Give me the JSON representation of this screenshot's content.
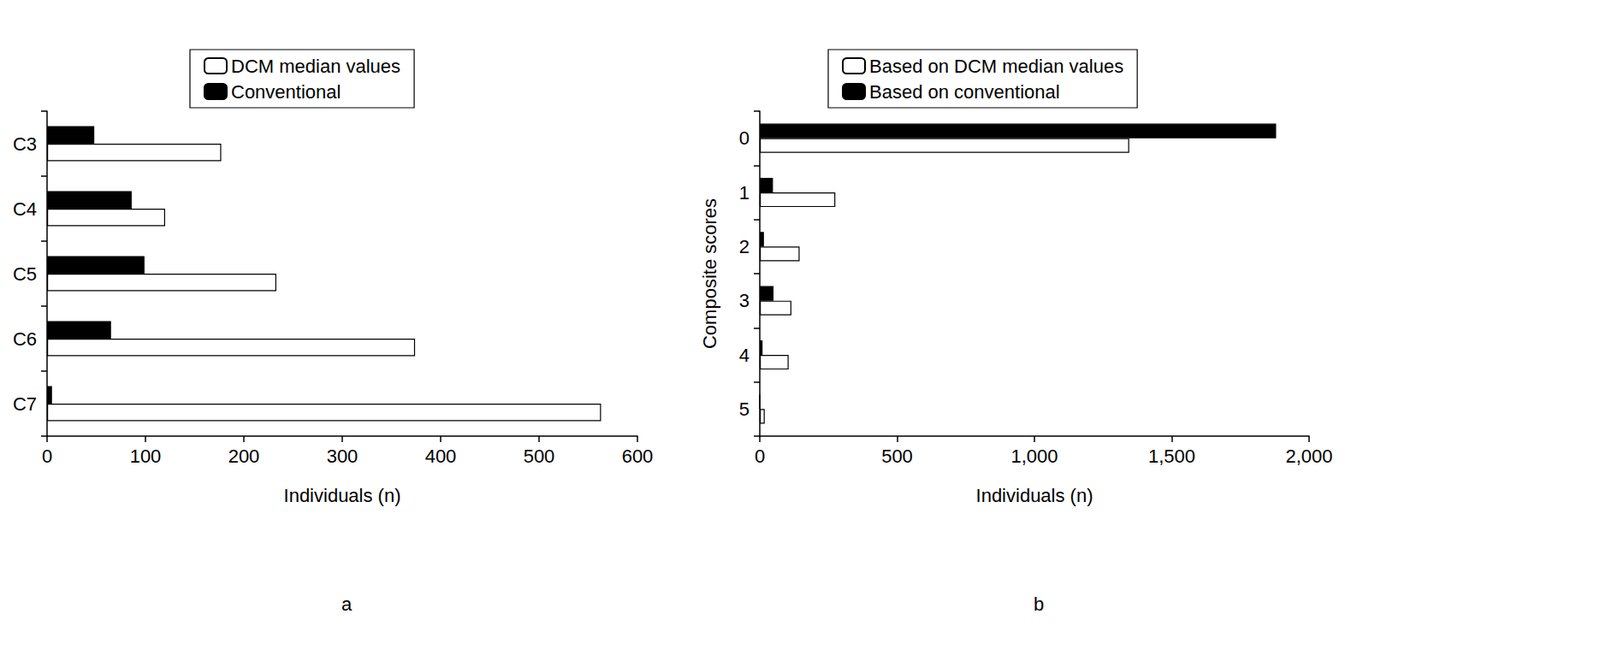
{
  "chart_data": [
    {
      "type": "bar",
      "title": "a",
      "orientation": "horizontal",
      "legend": "top",
      "grid": false,
      "xlabel": "Individuals (n)",
      "categories": [
        "C3",
        "C4",
        "C5",
        "C6",
        "C7"
      ],
      "series": [
        {
          "name": "DCM median values",
          "color": "#ffffff",
          "values": [
            177,
            120,
            233,
            374,
            563
          ]
        },
        {
          "name": "Conventional",
          "color": "#000000",
          "values": [
            48,
            86,
            99,
            65,
            5
          ]
        }
      ],
      "xlim": [
        0,
        600
      ],
      "xticks": [
        0,
        100,
        200,
        300,
        400,
        500,
        600
      ]
    },
    {
      "type": "bar",
      "title": "b",
      "orientation": "horizontal",
      "legend": "top",
      "grid": false,
      "xlabel": "Individuals (n)",
      "ylabel": "Composite scores",
      "categories": [
        "0",
        "1",
        "2",
        "3",
        "4",
        "5"
      ],
      "series": [
        {
          "name": "Based on DCM median values",
          "color": "#ffffff",
          "values": [
            1345,
            275,
            145,
            115,
            105,
            18
          ]
        },
        {
          "name": "Based on conventional",
          "color": "#000000",
          "values": [
            1880,
            48,
            15,
            50,
            10,
            0
          ]
        }
      ],
      "xlim": [
        0,
        2000
      ],
      "xticks": [
        0,
        500,
        {
          "value": 1000,
          "label": "1,000"
        },
        {
          "value": 1500,
          "label": "1,500"
        },
        {
          "value": 2000,
          "label": "2,000"
        }
      ]
    }
  ]
}
